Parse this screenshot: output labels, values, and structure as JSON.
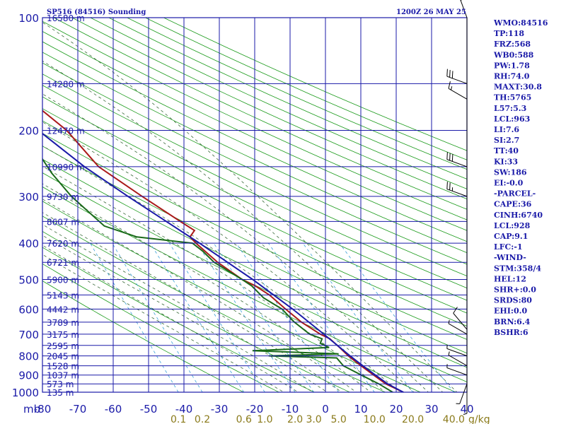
{
  "header": {
    "left": "SP516 (84516) Sounding",
    "right": "1200Z 26 MAY 25"
  },
  "chart_data": {
    "type": "line",
    "title": "SP516 (84516) Sounding",
    "subtitle": "1200Z 26 MAY 25",
    "pressure_axis": {
      "label": "mb",
      "ticks": [
        100,
        200,
        300,
        400,
        500,
        600,
        700,
        800,
        900,
        1000
      ],
      "scale": "log"
    },
    "height_labels": [
      {
        "p": 100,
        "label": "16580 m"
      },
      {
        "p": 150,
        "label": "14280 m"
      },
      {
        "p": 200,
        "label": "12470 m"
      },
      {
        "p": 250,
        "label": "10990 m"
      },
      {
        "p": 300,
        "label": "9730 m"
      },
      {
        "p": 350,
        "label": "8607 m"
      },
      {
        "p": 400,
        "label": "7620 m"
      },
      {
        "p": 450,
        "label": "6721 m"
      },
      {
        "p": 500,
        "label": "5900 m"
      },
      {
        "p": 550,
        "label": "5143 m"
      },
      {
        "p": 600,
        "label": "4442 m"
      },
      {
        "p": 650,
        "label": "3789 m"
      },
      {
        "p": 700,
        "label": "3175 m"
      },
      {
        "p": 750,
        "label": "2595 m"
      },
      {
        "p": 800,
        "label": "2045 m"
      },
      {
        "p": 850,
        "label": "1528 m"
      },
      {
        "p": 900,
        "label": "1037 m"
      },
      {
        "p": 950,
        "label": "573 m"
      },
      {
        "p": 1000,
        "label": "135 m"
      }
    ],
    "temperature_axis": {
      "range": [
        -80,
        40
      ],
      "ticks": [
        -80,
        -70,
        -60,
        -50,
        -40,
        -30,
        -20,
        -10,
        0,
        10,
        20,
        30,
        40
      ],
      "labels": [
        "-80",
        "-70",
        "-60",
        "-50",
        "-40",
        "-30",
        "-20",
        "-10",
        "0",
        "10",
        "20",
        "30",
        "40"
      ]
    },
    "mixing_ratio_axis": {
      "unit": "g/kg",
      "ticks": [
        0.1,
        0.2,
        0.6,
        1.0,
        2.0,
        3.0,
        5.0,
        10.0,
        20.0,
        40.0
      ],
      "labels": [
        "0.1",
        "0.2",
        "0.6",
        "1.0",
        "2.0",
        "3.0",
        "5.0",
        "10.0",
        "20.0",
        "40.0"
      ],
      "unit_label": "g/kg"
    },
    "series": [
      {
        "name": "",
        "color": "#aa1a1a",
        "points": [
          {
            "p": 1015,
            "t": 23
          },
          {
            "p": 1000,
            "t": 22
          },
          {
            "p": 950,
            "t": 18
          },
          {
            "p": 900,
            "t": 15.5
          },
          {
            "p": 850,
            "t": 13
          },
          {
            "p": 800,
            "t": 10.5
          },
          {
            "p": 760,
            "t": 9
          },
          {
            "p": 720,
            "t": 7.2
          },
          {
            "p": 700,
            "t": 5
          },
          {
            "p": 650,
            "t": 1
          },
          {
            "p": 600,
            "t": -2
          },
          {
            "p": 550,
            "t": -5
          },
          {
            "p": 520,
            "t": -8
          },
          {
            "p": 500,
            "t": -11
          },
          {
            "p": 450,
            "t": -16
          },
          {
            "p": 400,
            "t": -20
          },
          {
            "p": 385,
            "t": -21
          },
          {
            "p": 370,
            "t": -19
          },
          {
            "p": 350,
            "t": -22
          },
          {
            "p": 300,
            "t": -30
          },
          {
            "p": 250,
            "t": -39
          },
          {
            "p": 200,
            "t": -44
          },
          {
            "p": 150,
            "t": -55
          },
          {
            "p": 130,
            "t": -62
          },
          {
            "p": 120,
            "t": -66
          },
          {
            "p": 110,
            "t": -69
          },
          {
            "p": 100,
            "t": -72
          }
        ]
      },
      {
        "name": "",
        "color": "#1a6a1a",
        "points": [
          {
            "p": 1000,
            "t": 19
          },
          {
            "p": 950,
            "t": 16
          },
          {
            "p": 900,
            "t": 12
          },
          {
            "p": 850,
            "t": 8
          },
          {
            "p": 810,
            "t": 7
          },
          {
            "p": 800,
            "t": -12
          },
          {
            "p": 790,
            "t": 8
          },
          {
            "p": 775,
            "t": -16
          },
          {
            "p": 760,
            "t": 6
          },
          {
            "p": 740,
            "t": 4
          },
          {
            "p": 720,
            "t": 5
          },
          {
            "p": 700,
            "t": 2
          },
          {
            "p": 650,
            "t": -1
          },
          {
            "p": 600,
            "t": -3
          },
          {
            "p": 560,
            "t": -7
          },
          {
            "p": 520,
            "t": -9
          },
          {
            "p": 500,
            "t": -11
          },
          {
            "p": 450,
            "t": -17
          },
          {
            "p": 420,
            "t": -19
          },
          {
            "p": 400,
            "t": -21
          },
          {
            "p": 385,
            "t": -36
          },
          {
            "p": 360,
            "t": -44
          },
          {
            "p": 300,
            "t": -50
          },
          {
            "p": 260,
            "t": -53
          },
          {
            "p": 220,
            "t": -55
          },
          {
            "p": 200,
            "t": -60
          },
          {
            "p": 170,
            "t": -63
          },
          {
            "p": 150,
            "t": -67
          },
          {
            "p": 130,
            "t": -72
          },
          {
            "p": 115,
            "t": -80
          }
        ]
      },
      {
        "name": "",
        "color": "#1a1aa8",
        "points": [
          {
            "p": 1000,
            "t": 22
          },
          {
            "p": 950,
            "t": 18.5
          },
          {
            "p": 900,
            "t": 16
          },
          {
            "p": 850,
            "t": 13.5
          },
          {
            "p": 800,
            "t": 11
          },
          {
            "p": 700,
            "t": 6
          },
          {
            "p": 600,
            "t": 0
          },
          {
            "p": 500,
            "t": -8
          },
          {
            "p": 400,
            "t": -19
          },
          {
            "p": 300,
            "t": -34
          },
          {
            "p": 250,
            "t": -43
          },
          {
            "p": 200,
            "t": -52
          },
          {
            "p": 150,
            "t": -62
          },
          {
            "p": 120,
            "t": -70
          },
          {
            "p": 110,
            "t": -73
          }
        ]
      }
    ],
    "wind_barbs": [
      {
        "p": 100,
        "dir": 340,
        "speed": 20
      },
      {
        "p": 150,
        "dir": 290,
        "speed": 30
      },
      {
        "p": 165,
        "dir": 300,
        "speed": 15
      },
      {
        "p": 250,
        "dir": 290,
        "speed": 30
      },
      {
        "p": 300,
        "dir": 290,
        "speed": 25
      },
      {
        "p": 680,
        "dir": 320,
        "speed": 10
      },
      {
        "p": 700,
        "dir": 300,
        "speed": 5
      },
      {
        "p": 800,
        "dir": 290,
        "speed": 5
      },
      {
        "p": 850,
        "dir": 300,
        "speed": 5
      },
      {
        "p": 900,
        "dir": 290,
        "speed": 5
      },
      {
        "p": 950,
        "dir": 200,
        "speed": 5
      },
      {
        "p": 1000,
        "dir": 180,
        "speed": 5
      }
    ]
  },
  "indices": [
    "WMO:84516",
    "TP:118",
    "FRZ:568",
    "WB0:588",
    "PW:1.78",
    "RH:74.0",
    "MAXT:30.8",
    "TH:5765",
    "L57:5.3",
    "LCL:963",
    "LI:7.6",
    "SI:2.7",
    "TT:40",
    "KI:33",
    "SW:186",
    "EI:-0.0",
    "-PARCEL-",
    "CAPE:36",
    "CINH:6740",
    "LCL:928",
    "CAP:9.1",
    "LFC:-1",
    "-WIND-",
    "STM:358/4",
    "HEL:12",
    "SHR+:0.0",
    "SRDS:80",
    "EHI:0.0",
    "BRN:6.4",
    "BSHR:6"
  ],
  "colors": {
    "frame": "#1a1aa8",
    "isotherm": "#1a1aa8",
    "dry_adiabat": "#1a9a1a",
    "moist_adiabat": "#3a6a3a",
    "mixing_ratio": "#3aa0d8",
    "temperature": "#aa1a1a",
    "dewpoint": "#1a6a1a",
    "parcel": "#1a1aa8"
  }
}
